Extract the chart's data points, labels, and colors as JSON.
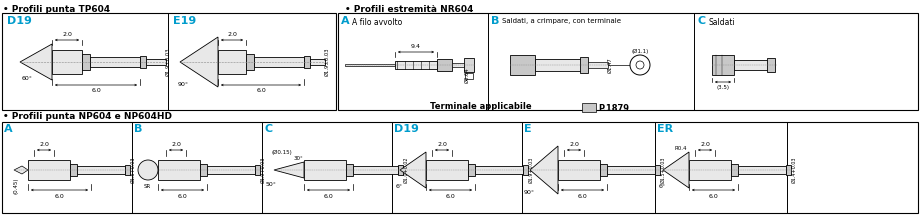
{
  "bg_color": "#ffffff",
  "s1_title": "• Profili punta TP604",
  "s2_title": "• Profili estremità NR604",
  "s3_title": "• Profili punta NP604 e NP604HD",
  "terminale_text": "Terminale applicabile",
  "terminale_page": "P.1879",
  "cyan": "#009ccc",
  "black": "#000000",
  "gray1": "#e8e8e8",
  "gray2": "#c8c8c8",
  "gray3": "#d8d8d8"
}
